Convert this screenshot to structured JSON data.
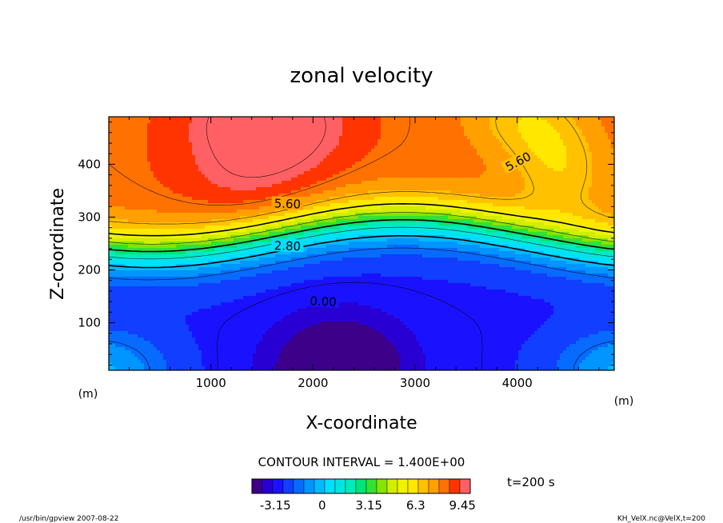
{
  "chart_data": {
    "type": "contour",
    "title": "zonal velocity",
    "xlabel": "X-coordinate",
    "ylabel": "Z-coordinate",
    "x_unit": "(m)",
    "y_unit": "(m)",
    "xlim": [
      0,
      4950
    ],
    "ylim": [
      10,
      490
    ],
    "xticks": [
      1000,
      2000,
      3000,
      4000
    ],
    "yticks": [
      100,
      200,
      300,
      400
    ],
    "contour_interval_text": "CONTOUR INTERVAL = 1.400E+00",
    "time_text": "t=200 s",
    "contour_labels": [
      {
        "text": "5.60",
        "x": 4010,
        "y": 405
      },
      {
        "text": "5.60",
        "x": 1750,
        "y": 325
      },
      {
        "text": "2.80",
        "x": 1750,
        "y": 245
      },
      {
        "text": "0.00",
        "x": 2100,
        "y": 140
      }
    ],
    "colorbar": {
      "ticks": [
        "-3.15",
        "0",
        "3.15",
        "6.3",
        "9.45"
      ],
      "tick_values": [
        -3.15,
        0,
        3.15,
        6.3,
        9.45
      ],
      "range": [
        -4.725,
        9.975
      ]
    }
  },
  "footer": {
    "left": "/usr/bin/gpview  2007-08-22",
    "right": "KH_VelX.nc@VelX,t=200"
  },
  "colors": {
    "background": "#ffffff",
    "contour_line": "#000000"
  }
}
